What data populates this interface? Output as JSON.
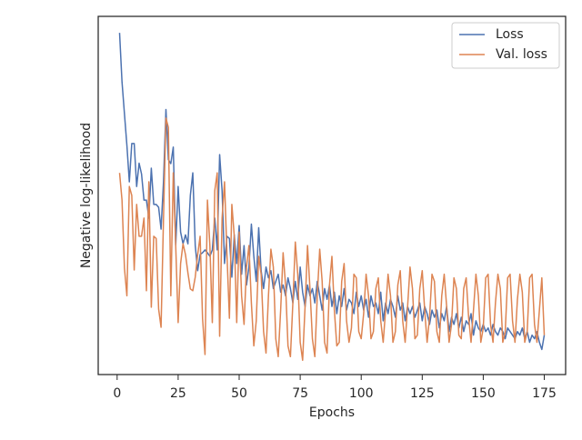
{
  "chart_data": {
    "type": "line",
    "xlabel": "Epochs",
    "ylabel": "Negative log-likelihood",
    "xlim": [
      -7.75,
      183.75
    ],
    "ylim": [
      0,
      100
    ],
    "xticks": [
      0,
      25,
      50,
      75,
      100,
      125,
      150,
      175
    ],
    "legend": "upper right",
    "grid": false,
    "x": [
      1,
      2,
      3,
      4,
      5,
      6,
      7,
      8,
      9,
      10,
      11,
      12,
      13,
      14,
      15,
      16,
      17,
      18,
      19,
      20,
      21,
      22,
      23,
      24,
      25,
      26,
      27,
      28,
      29,
      30,
      31,
      32,
      33,
      34,
      35,
      36,
      37,
      38,
      39,
      40,
      41,
      42,
      43,
      44,
      45,
      46,
      47,
      48,
      49,
      50,
      51,
      52,
      53,
      54,
      55,
      56,
      57,
      58,
      59,
      60,
      61,
      62,
      63,
      64,
      65,
      66,
      67,
      68,
      69,
      70,
      71,
      72,
      73,
      74,
      75,
      76,
      77,
      78,
      79,
      80,
      81,
      82,
      83,
      84,
      85,
      86,
      87,
      88,
      89,
      90,
      91,
      92,
      93,
      94,
      95,
      96,
      97,
      98,
      99,
      100,
      101,
      102,
      103,
      104,
      105,
      106,
      107,
      108,
      109,
      110,
      111,
      112,
      113,
      114,
      115,
      116,
      117,
      118,
      119,
      120,
      121,
      122,
      123,
      124,
      125,
      126,
      127,
      128,
      129,
      130,
      131,
      132,
      133,
      134,
      135,
      136,
      137,
      138,
      139,
      140,
      141,
      142,
      143,
      144,
      145,
      146,
      147,
      148,
      149,
      150,
      151,
      152,
      153,
      154,
      155,
      156,
      157,
      158,
      159,
      160,
      161,
      162,
      163,
      164,
      165,
      166,
      167,
      168,
      169,
      170,
      171,
      172,
      173,
      174,
      175
    ],
    "series": [
      {
        "name": "Loss",
        "color": "#4c72b0",
        "values": [
          95.4,
          81.7,
          72.8,
          64,
          53.8,
          64.5,
          64.5,
          52.5,
          59,
          56,
          48.7,
          48.7,
          43.7,
          57.6,
          47.5,
          47.5,
          46.7,
          40.6,
          53.8,
          74,
          60,
          58.9,
          63.5,
          36,
          52.5,
          39.8,
          36.5,
          39,
          36.5,
          50,
          56.3,
          36,
          29,
          33.5,
          34,
          34.8,
          34,
          33,
          34.8,
          43.7,
          34.8,
          61.4,
          51.3,
          31,
          38.6,
          38,
          27.2,
          39,
          31,
          41.6,
          28,
          36,
          25,
          30,
          42,
          33,
          26,
          41,
          29,
          24,
          30,
          27,
          29,
          24,
          26,
          28,
          23,
          25,
          22,
          27,
          24,
          20,
          26,
          21,
          30,
          23,
          19,
          25,
          22,
          24,
          20,
          26,
          22,
          18,
          24,
          21,
          25,
          19,
          23,
          17,
          22,
          19,
          24,
          18,
          21,
          20,
          17,
          23,
          19,
          22,
          18,
          21,
          16,
          22,
          19,
          20,
          17,
          23,
          15,
          20,
          17,
          21,
          19,
          16,
          22,
          18,
          20,
          15,
          19,
          17,
          19,
          16,
          18,
          20,
          15,
          19,
          17,
          14,
          18,
          16,
          18,
          13,
          17,
          15,
          19,
          12,
          16,
          14,
          17,
          13,
          16,
          12,
          15,
          14,
          17,
          11,
          15,
          13,
          12,
          14,
          12,
          13,
          11,
          14,
          12,
          11,
          13,
          12,
          10,
          13,
          12,
          11,
          10,
          12,
          11,
          13,
          10,
          12,
          9,
          11,
          10,
          12,
          9,
          7,
          11
        ]
      },
      {
        "name": "Val. loss",
        "color": "#dd8452",
        "values": [
          56.3,
          48.7,
          29.7,
          22,
          52.5,
          50,
          29.2,
          47.5,
          38.6,
          38.6,
          43.7,
          23.4,
          53.8,
          18.8,
          38.6,
          38,
          18.3,
          13.2,
          43.7,
          71.6,
          69,
          22,
          56.3,
          36,
          14.5,
          31,
          36.5,
          33.5,
          28.4,
          23.9,
          23.4,
          27.2,
          33.5,
          38.6,
          15.7,
          5.6,
          48.7,
          36,
          14.5,
          51.3,
          56.3,
          10.7,
          43.7,
          53.8,
          33.5,
          15.7,
          47.5,
          38.6,
          14.5,
          39.8,
          22,
          14,
          30,
          36,
          20,
          8,
          15,
          33,
          28,
          12,
          6,
          22,
          35,
          30,
          10,
          5,
          18,
          34,
          25,
          8,
          5,
          20,
          37,
          28,
          9,
          4,
          19,
          36,
          24,
          10,
          5,
          22,
          35,
          26,
          9,
          6,
          25,
          33,
          18,
          8,
          9,
          26,
          31,
          15,
          9,
          13,
          28,
          27,
          12,
          10,
          17,
          28,
          22,
          10,
          12,
          24,
          27,
          15,
          9,
          18,
          28,
          22,
          9,
          12,
          25,
          29,
          15,
          9,
          19,
          30,
          24,
          10,
          11,
          24,
          29,
          18,
          9,
          16,
          28,
          26,
          12,
          9,
          22,
          28,
          19,
          9,
          14,
          27,
          24,
          11,
          10,
          24,
          27,
          16,
          9,
          18,
          28,
          22,
          9,
          13,
          27,
          28,
          14,
          9,
          20,
          28,
          24,
          9,
          12,
          27,
          28,
          15,
          9,
          21,
          28,
          23,
          9,
          12,
          27,
          28,
          14,
          9,
          18,
          27,
          11
        ]
      }
    ]
  }
}
